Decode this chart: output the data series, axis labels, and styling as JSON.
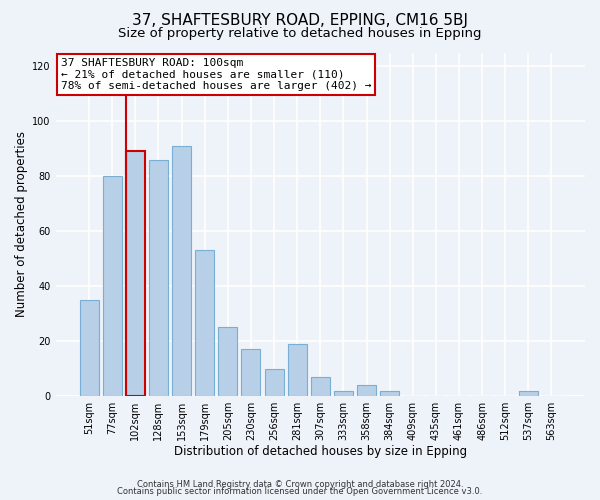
{
  "title": "37, SHAFTESBURY ROAD, EPPING, CM16 5BJ",
  "subtitle": "Size of property relative to detached houses in Epping",
  "xlabel": "Distribution of detached houses by size in Epping",
  "ylabel": "Number of detached properties",
  "bar_labels": [
    "51sqm",
    "77sqm",
    "102sqm",
    "128sqm",
    "153sqm",
    "179sqm",
    "205sqm",
    "230sqm",
    "256sqm",
    "281sqm",
    "307sqm",
    "333sqm",
    "358sqm",
    "384sqm",
    "409sqm",
    "435sqm",
    "461sqm",
    "486sqm",
    "512sqm",
    "537sqm",
    "563sqm"
  ],
  "bar_heights": [
    35,
    80,
    89,
    86,
    91,
    53,
    25,
    17,
    10,
    19,
    7,
    2,
    4,
    2,
    0,
    0,
    0,
    0,
    0,
    2,
    0
  ],
  "bar_color": "#b8cfe8",
  "bar_edge_color": "#7aafd4",
  "highlight_bar_index": 2,
  "highlight_color": "#cc0000",
  "annotation_line1": "37 SHAFTESBURY ROAD: 100sqm",
  "annotation_line2": "← 21% of detached houses are smaller (110)",
  "annotation_line3": "78% of semi-detached houses are larger (402) →",
  "annotation_box_color": "#ffffff",
  "annotation_box_edge_color": "#cc0000",
  "ylim": [
    0,
    125
  ],
  "yticks": [
    0,
    20,
    40,
    60,
    80,
    100,
    120
  ],
  "footer_line1": "Contains HM Land Registry data © Crown copyright and database right 2024.",
  "footer_line2": "Contains public sector information licensed under the Open Government Licence v3.0.",
  "bg_color": "#eef2f9",
  "grid_color": "#ffffff",
  "title_fontsize": 11,
  "subtitle_fontsize": 9.5,
  "axis_label_fontsize": 8.5,
  "tick_fontsize": 7,
  "annotation_fontsize": 8,
  "footer_fontsize": 6
}
